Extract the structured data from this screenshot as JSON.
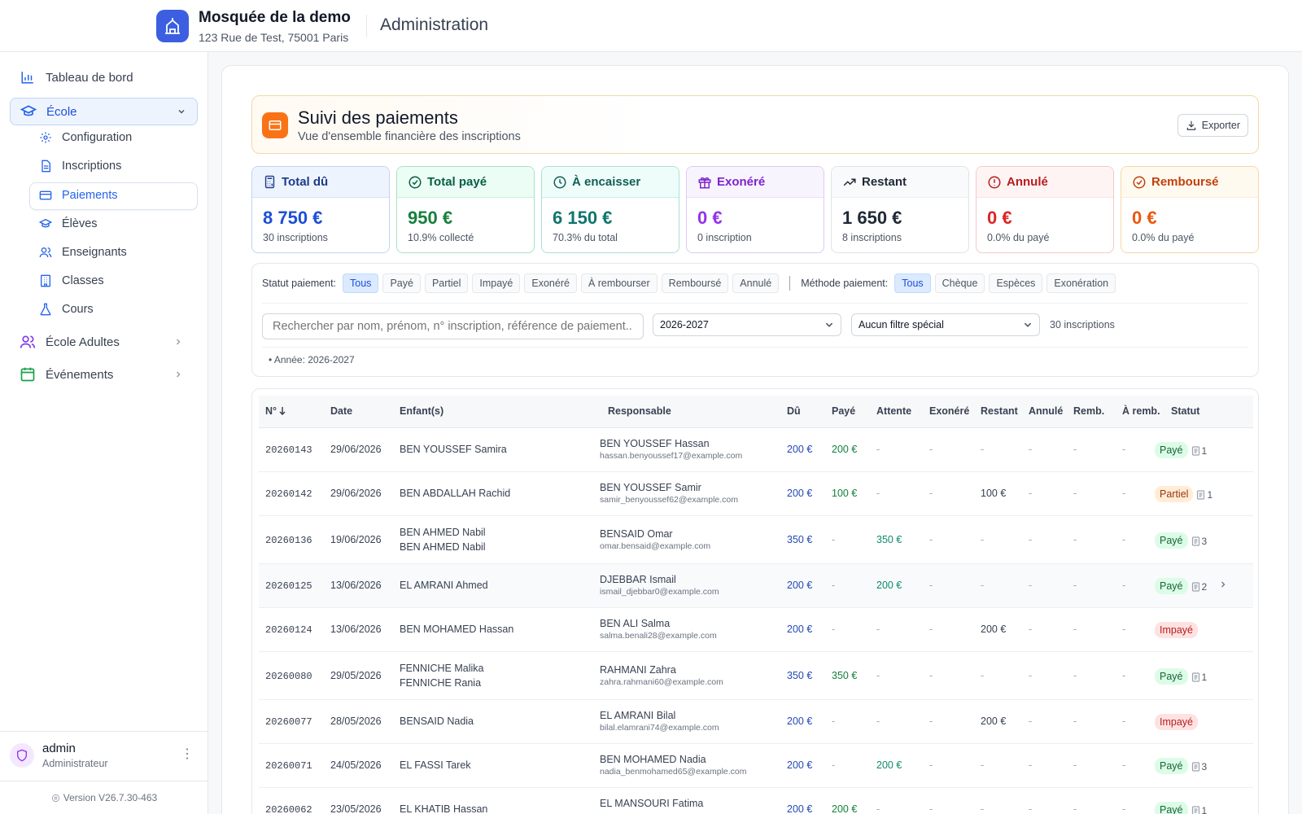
{
  "org": {
    "name": "Mosquée de la demo",
    "address": "123 Rue de Test, 75001 Paris"
  },
  "app_title": "Administration",
  "sidebar": {
    "dashboard": "Tableau de bord",
    "ecole": "École",
    "sub": [
      "Configuration",
      "Inscriptions",
      "Paiements",
      "Élèves",
      "Enseignants",
      "Classes",
      "Cours"
    ],
    "ecole_adultes": "École Adultes",
    "evenements": "Événements",
    "user_name": "admin",
    "user_role": "Administrateur",
    "version": "Version V26.7.30-463"
  },
  "header": {
    "title": "Suivi des paiements",
    "subtitle": "Vue d'ensemble financière des inscriptions",
    "export": "Exporter"
  },
  "stats": [
    {
      "label": "Total dû",
      "value": "8 750 €",
      "sub": "30 inscriptions"
    },
    {
      "label": "Total payé",
      "value": "950 €",
      "sub": "10.9% collecté"
    },
    {
      "label": "À encaisser",
      "value": "6 150 €",
      "sub": "70.3% du total"
    },
    {
      "label": "Exonéré",
      "value": "0 €",
      "sub": "0 inscription"
    },
    {
      "label": "Restant",
      "value": "1 650 €",
      "sub": "8 inscriptions"
    },
    {
      "label": "Annulé",
      "value": "0 €",
      "sub": "0.0% du payé"
    },
    {
      "label": "Remboursé",
      "value": "0 €",
      "sub": "0.0% du payé"
    }
  ],
  "filters": {
    "statut_label": "Statut paiement:",
    "statut": [
      "Tous",
      "Payé",
      "Partiel",
      "Impayé",
      "Exonéré",
      "À rembourser",
      "Remboursé",
      "Annulé"
    ],
    "methode_label": "Méthode paiement:",
    "methode": [
      "Tous",
      "Chèque",
      "Espèces",
      "Exonération"
    ],
    "search_placeholder": "Rechercher par nom, prénom, n° inscription, référence de paiement...",
    "year": "2026-2027",
    "special": "Aucun filtre spécial",
    "count": "30 inscriptions",
    "active_filter": "Année: 2026-2027"
  },
  "table": {
    "headers": [
      "N°",
      "Date",
      "Enfant(s)",
      "Responsable",
      "Dû",
      "Payé",
      "Attente",
      "Exonéré",
      "Restant",
      "Annulé",
      "Remb.",
      "À remb.",
      "Statut"
    ],
    "rows": [
      {
        "num": "20260143",
        "date": "29/06/2026",
        "child1": "BEN YOUSSEF Samira",
        "child2": "",
        "resp": "BEN YOUSSEF Hassan",
        "email": "hassan.benyoussef17@example.com",
        "du": "200 €",
        "paye": "200 €",
        "attente": "-",
        "exonere": "-",
        "restant": "-",
        "annule": "-",
        "remb": "-",
        "aremb": "-",
        "statut": "Payé",
        "count": "1"
      },
      {
        "num": "20260142",
        "date": "29/06/2026",
        "child1": "BEN ABDALLAH Rachid",
        "child2": "",
        "resp": "BEN YOUSSEF Samir",
        "email": "samir_benyoussef62@example.com",
        "du": "200 €",
        "paye": "100 €",
        "attente": "-",
        "exonere": "-",
        "restant": "100 €",
        "annule": "-",
        "remb": "-",
        "aremb": "-",
        "statut": "Partiel",
        "count": "1"
      },
      {
        "num": "20260136",
        "date": "19/06/2026",
        "child1": "BEN AHMED Nabil",
        "child2": "BEN AHMED Nabil",
        "resp": "BENSAID Omar",
        "email": "omar.bensaid@example.com",
        "du": "350 €",
        "paye": "-",
        "attente": "350 €",
        "exonere": "-",
        "restant": "-",
        "annule": "-",
        "remb": "-",
        "aremb": "-",
        "statut": "Payé",
        "count": "3"
      },
      {
        "num": "20260125",
        "date": "13/06/2026",
        "child1": "EL AMRANI Ahmed",
        "child2": "",
        "resp": "DJEBBAR Ismail",
        "email": "ismail_djebbar0@example.com",
        "du": "200 €",
        "paye": "-",
        "attente": "200 €",
        "exonere": "-",
        "restant": "-",
        "annule": "-",
        "remb": "-",
        "aremb": "-",
        "statut": "Payé",
        "count": "2"
      },
      {
        "num": "20260124",
        "date": "13/06/2026",
        "child1": "BEN MOHAMED Hassan",
        "child2": "",
        "resp": "BEN ALI Salma",
        "email": "salma.benali28@example.com",
        "du": "200 €",
        "paye": "-",
        "attente": "-",
        "exonere": "-",
        "restant": "200 €",
        "annule": "-",
        "remb": "-",
        "aremb": "-",
        "statut": "Impayé",
        "count": ""
      },
      {
        "num": "20260080",
        "date": "29/05/2026",
        "child1": "FENNICHE Malika",
        "child2": "FENNICHE Rania",
        "resp": "RAHMANI Zahra",
        "email": "zahra.rahmani60@example.com",
        "du": "350 €",
        "paye": "350 €",
        "attente": "-",
        "exonere": "-",
        "restant": "-",
        "annule": "-",
        "remb": "-",
        "aremb": "-",
        "statut": "Payé",
        "count": "1"
      },
      {
        "num": "20260077",
        "date": "28/05/2026",
        "child1": "BENSAID Nadia",
        "child2": "",
        "resp": "EL AMRANI Bilal",
        "email": "bilal.elamrani74@example.com",
        "du": "200 €",
        "paye": "-",
        "attente": "-",
        "exonere": "-",
        "restant": "200 €",
        "annule": "-",
        "remb": "-",
        "aremb": "-",
        "statut": "Impayé",
        "count": ""
      },
      {
        "num": "20260071",
        "date": "24/05/2026",
        "child1": "EL FASSI Tarek",
        "child2": "",
        "resp": "BEN MOHAMED Nadia",
        "email": "nadia_benmohamed65@example.com",
        "du": "200 €",
        "paye": "-",
        "attente": "200 €",
        "exonere": "-",
        "restant": "-",
        "annule": "-",
        "remb": "-",
        "aremb": "-",
        "statut": "Payé",
        "count": "3"
      },
      {
        "num": "20260062",
        "date": "23/05/2026",
        "child1": "EL KHATIB Hassan",
        "child2": "",
        "resp": "EL MANSOURI Fatima",
        "email": "",
        "du": "200 €",
        "paye": "200 €",
        "attente": "-",
        "exonere": "-",
        "restant": "-",
        "annule": "-",
        "remb": "-",
        "aremb": "-",
        "statut": "Payé",
        "count": "1"
      }
    ]
  },
  "colors": {
    "primary": "#2563eb",
    "brand": "#3b5fe0",
    "header_accent": "#f97316"
  }
}
